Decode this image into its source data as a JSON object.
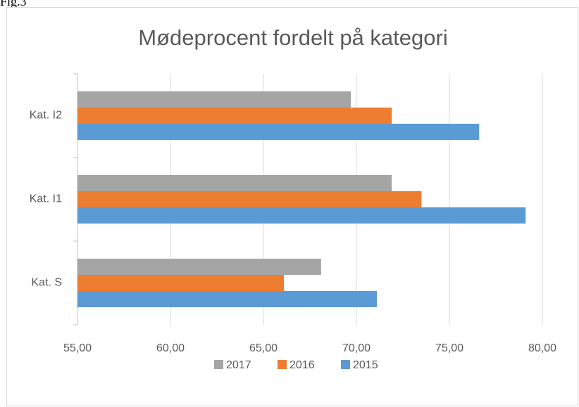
{
  "caption": "Fig.3",
  "chart_data": {
    "type": "barh",
    "title": "Mødeprocent fordelt på kategori",
    "categories": [
      "Kat. S",
      "Kat. I1",
      "Kat. I2"
    ],
    "series": [
      {
        "name": "2017",
        "color": "#a5a5a5",
        "values": [
          68.1,
          71.9,
          69.7
        ]
      },
      {
        "name": "2016",
        "color": "#ed7d31",
        "values": [
          66.1,
          73.5,
          71.9
        ]
      },
      {
        "name": "2015",
        "color": "#5b9bd5",
        "values": [
          71.1,
          79.1,
          76.6
        ]
      }
    ],
    "xlim": [
      55,
      80
    ],
    "xticks": [
      {
        "value": 55,
        "label": "55,00"
      },
      {
        "value": 60,
        "label": "60,00"
      },
      {
        "value": 65,
        "label": "65,00"
      },
      {
        "value": 70,
        "label": "70,00"
      },
      {
        "value": 75,
        "label": "75,00"
      },
      {
        "value": 80,
        "label": "80,00"
      }
    ],
    "grid": true,
    "legend": "bottom"
  }
}
